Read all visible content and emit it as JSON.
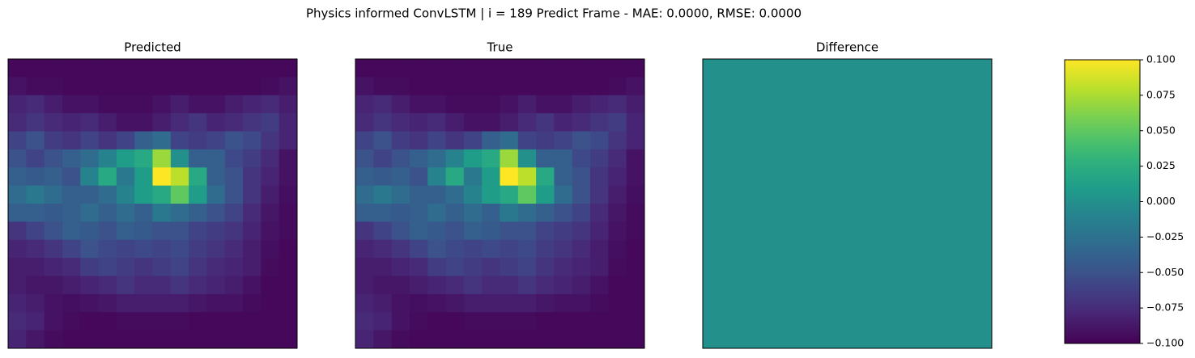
{
  "suptitle": "Physics informed ConvLSTM | i = 189 Predict Frame - MAE: 0.0000, RMSE: 0.0000",
  "chart_data": [
    {
      "type": "heatmap",
      "title": "Predicted",
      "cmap": "viridis",
      "clim": [
        0,
        1
      ],
      "values": [
        [
          0.02,
          0.02,
          0.02,
          0.02,
          0.02,
          0.02,
          0.02,
          0.02,
          0.02,
          0.02,
          0.02,
          0.02,
          0.02,
          0.02,
          0.02,
          0.02
        ],
        [
          0.05,
          0.03,
          0.03,
          0.02,
          0.02,
          0.02,
          0.02,
          0.02,
          0.02,
          0.02,
          0.02,
          0.02,
          0.02,
          0.02,
          0.03,
          0.05
        ],
        [
          0.1,
          0.12,
          0.08,
          0.05,
          0.05,
          0.03,
          0.03,
          0.03,
          0.05,
          0.08,
          0.05,
          0.05,
          0.08,
          0.1,
          0.12,
          0.08
        ],
        [
          0.12,
          0.15,
          0.12,
          0.1,
          0.12,
          0.08,
          0.05,
          0.05,
          0.08,
          0.12,
          0.15,
          0.1,
          0.12,
          0.15,
          0.18,
          0.1
        ],
        [
          0.2,
          0.25,
          0.18,
          0.15,
          0.2,
          0.15,
          0.2,
          0.3,
          0.35,
          0.2,
          0.18,
          0.2,
          0.25,
          0.22,
          0.15,
          0.1
        ],
        [
          0.25,
          0.2,
          0.25,
          0.3,
          0.35,
          0.45,
          0.55,
          0.6,
          0.85,
          0.5,
          0.3,
          0.3,
          0.22,
          0.18,
          0.12,
          0.05
        ],
        [
          0.3,
          0.28,
          0.3,
          0.25,
          0.45,
          0.6,
          0.4,
          0.55,
          1.0,
          0.9,
          0.6,
          0.3,
          0.25,
          0.15,
          0.1,
          0.05
        ],
        [
          0.35,
          0.4,
          0.35,
          0.3,
          0.3,
          0.35,
          0.45,
          0.55,
          0.6,
          0.75,
          0.55,
          0.35,
          0.25,
          0.15,
          0.08,
          0.04
        ],
        [
          0.3,
          0.3,
          0.28,
          0.3,
          0.35,
          0.3,
          0.35,
          0.3,
          0.4,
          0.35,
          0.3,
          0.25,
          0.2,
          0.12,
          0.06,
          0.03
        ],
        [
          0.15,
          0.2,
          0.25,
          0.3,
          0.28,
          0.25,
          0.3,
          0.28,
          0.25,
          0.25,
          0.2,
          0.18,
          0.15,
          0.1,
          0.05,
          0.03
        ],
        [
          0.1,
          0.12,
          0.15,
          0.2,
          0.25,
          0.22,
          0.2,
          0.22,
          0.2,
          0.22,
          0.18,
          0.15,
          0.12,
          0.08,
          0.04,
          0.02
        ],
        [
          0.08,
          0.08,
          0.1,
          0.12,
          0.18,
          0.2,
          0.18,
          0.15,
          0.18,
          0.2,
          0.15,
          0.12,
          0.1,
          0.08,
          0.03,
          0.02
        ],
        [
          0.08,
          0.06,
          0.06,
          0.08,
          0.1,
          0.12,
          0.15,
          0.12,
          0.12,
          0.15,
          0.12,
          0.1,
          0.08,
          0.05,
          0.02,
          0.02
        ],
        [
          0.1,
          0.08,
          0.05,
          0.04,
          0.05,
          0.06,
          0.08,
          0.08,
          0.08,
          0.08,
          0.06,
          0.05,
          0.05,
          0.03,
          0.02,
          0.02
        ],
        [
          0.12,
          0.1,
          0.05,
          0.03,
          0.02,
          0.02,
          0.03,
          0.03,
          0.03,
          0.03,
          0.02,
          0.02,
          0.02,
          0.02,
          0.02,
          0.02
        ],
        [
          0.1,
          0.06,
          0.03,
          0.02,
          0.02,
          0.02,
          0.02,
          0.02,
          0.02,
          0.02,
          0.02,
          0.02,
          0.02,
          0.02,
          0.02,
          0.02
        ]
      ]
    },
    {
      "type": "heatmap",
      "title": "True",
      "cmap": "viridis",
      "clim": [
        0,
        1
      ],
      "values": [
        [
          0.02,
          0.02,
          0.02,
          0.02,
          0.02,
          0.02,
          0.02,
          0.02,
          0.02,
          0.02,
          0.02,
          0.02,
          0.02,
          0.02,
          0.02,
          0.02
        ],
        [
          0.05,
          0.03,
          0.03,
          0.02,
          0.02,
          0.02,
          0.02,
          0.02,
          0.02,
          0.02,
          0.02,
          0.02,
          0.02,
          0.02,
          0.03,
          0.05
        ],
        [
          0.1,
          0.12,
          0.08,
          0.05,
          0.05,
          0.03,
          0.03,
          0.03,
          0.05,
          0.08,
          0.05,
          0.05,
          0.08,
          0.1,
          0.12,
          0.08
        ],
        [
          0.12,
          0.15,
          0.12,
          0.1,
          0.12,
          0.08,
          0.05,
          0.05,
          0.08,
          0.12,
          0.15,
          0.1,
          0.12,
          0.15,
          0.18,
          0.1
        ],
        [
          0.2,
          0.25,
          0.18,
          0.15,
          0.2,
          0.15,
          0.2,
          0.3,
          0.35,
          0.2,
          0.18,
          0.2,
          0.25,
          0.22,
          0.15,
          0.1
        ],
        [
          0.25,
          0.2,
          0.25,
          0.3,
          0.35,
          0.45,
          0.55,
          0.6,
          0.85,
          0.5,
          0.3,
          0.3,
          0.22,
          0.18,
          0.12,
          0.05
        ],
        [
          0.3,
          0.28,
          0.3,
          0.25,
          0.45,
          0.6,
          0.4,
          0.55,
          1.0,
          0.9,
          0.6,
          0.3,
          0.25,
          0.15,
          0.1,
          0.05
        ],
        [
          0.35,
          0.4,
          0.35,
          0.3,
          0.3,
          0.35,
          0.45,
          0.55,
          0.6,
          0.75,
          0.55,
          0.35,
          0.25,
          0.15,
          0.08,
          0.04
        ],
        [
          0.3,
          0.3,
          0.28,
          0.3,
          0.35,
          0.3,
          0.35,
          0.3,
          0.4,
          0.35,
          0.3,
          0.25,
          0.2,
          0.12,
          0.06,
          0.03
        ],
        [
          0.15,
          0.2,
          0.25,
          0.3,
          0.28,
          0.25,
          0.3,
          0.28,
          0.25,
          0.25,
          0.2,
          0.18,
          0.15,
          0.1,
          0.05,
          0.03
        ],
        [
          0.1,
          0.12,
          0.15,
          0.2,
          0.25,
          0.22,
          0.2,
          0.22,
          0.2,
          0.22,
          0.18,
          0.15,
          0.12,
          0.08,
          0.04,
          0.02
        ],
        [
          0.08,
          0.08,
          0.1,
          0.12,
          0.18,
          0.2,
          0.18,
          0.15,
          0.18,
          0.2,
          0.15,
          0.12,
          0.1,
          0.08,
          0.03,
          0.02
        ],
        [
          0.08,
          0.06,
          0.06,
          0.08,
          0.1,
          0.12,
          0.15,
          0.12,
          0.12,
          0.15,
          0.12,
          0.1,
          0.08,
          0.05,
          0.02,
          0.02
        ],
        [
          0.1,
          0.08,
          0.05,
          0.04,
          0.05,
          0.06,
          0.08,
          0.08,
          0.08,
          0.08,
          0.06,
          0.05,
          0.05,
          0.03,
          0.02,
          0.02
        ],
        [
          0.12,
          0.1,
          0.05,
          0.03,
          0.02,
          0.02,
          0.03,
          0.03,
          0.03,
          0.03,
          0.02,
          0.02,
          0.02,
          0.02,
          0.02,
          0.02
        ],
        [
          0.1,
          0.06,
          0.03,
          0.02,
          0.02,
          0.02,
          0.02,
          0.02,
          0.02,
          0.02,
          0.02,
          0.02,
          0.02,
          0.02,
          0.02,
          0.02
        ]
      ]
    },
    {
      "type": "heatmap",
      "title": "Difference",
      "cmap": "viridis",
      "clim": [
        -0.1,
        0.1
      ],
      "values": [
        [
          0
        ]
      ],
      "colorbar": {
        "ylim": [
          -0.1,
          0.1
        ],
        "yticks": [
          {
            "value": -0.1,
            "label": "−0.100"
          },
          {
            "value": -0.075,
            "label": "−0.075"
          },
          {
            "value": -0.05,
            "label": "−0.050"
          },
          {
            "value": -0.025,
            "label": "−0.025"
          },
          {
            "value": 0,
            "label": "0.000"
          },
          {
            "value": 0.025,
            "label": "0.025"
          },
          {
            "value": 0.05,
            "label": "0.050"
          },
          {
            "value": 0.075,
            "label": "0.075"
          },
          {
            "value": 0.1,
            "label": "0.100"
          }
        ]
      }
    }
  ]
}
